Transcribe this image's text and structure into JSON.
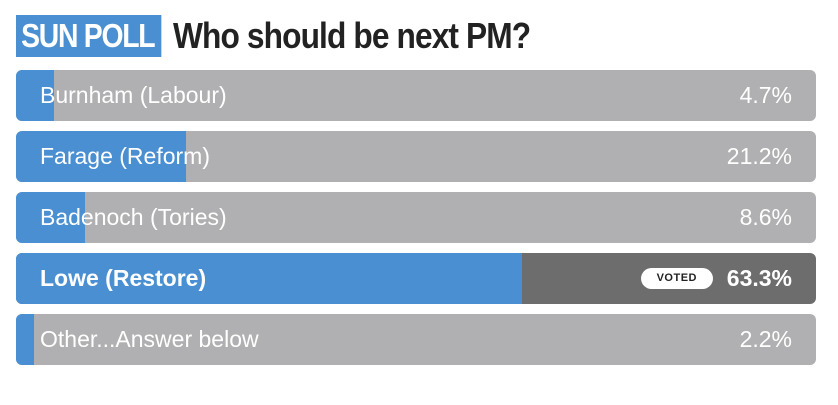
{
  "header": {
    "badge": "SUN POLL",
    "title": "Who should be next PM?"
  },
  "poll": {
    "voted_tag": "VOTED",
    "options": [
      {
        "label": "Burnham (Labour)",
        "percent_text": "4.7%",
        "percent": 4.7,
        "voted": false
      },
      {
        "label": "Farage (Reform)",
        "percent_text": "21.2%",
        "percent": 21.2,
        "voted": false
      },
      {
        "label": "Badenoch (Tories)",
        "percent_text": "8.6%",
        "percent": 8.6,
        "voted": false
      },
      {
        "label": "Lowe (Restore)",
        "percent_text": "63.3%",
        "percent": 63.3,
        "voted": true
      },
      {
        "label": "Other...Answer below",
        "percent_text": "2.2%",
        "percent": 2.2,
        "voted": false
      }
    ]
  },
  "colors": {
    "accent": "#4a8fd1",
    "bar_background": "#b0b0b2",
    "voted_background": "#6d6d6d"
  }
}
